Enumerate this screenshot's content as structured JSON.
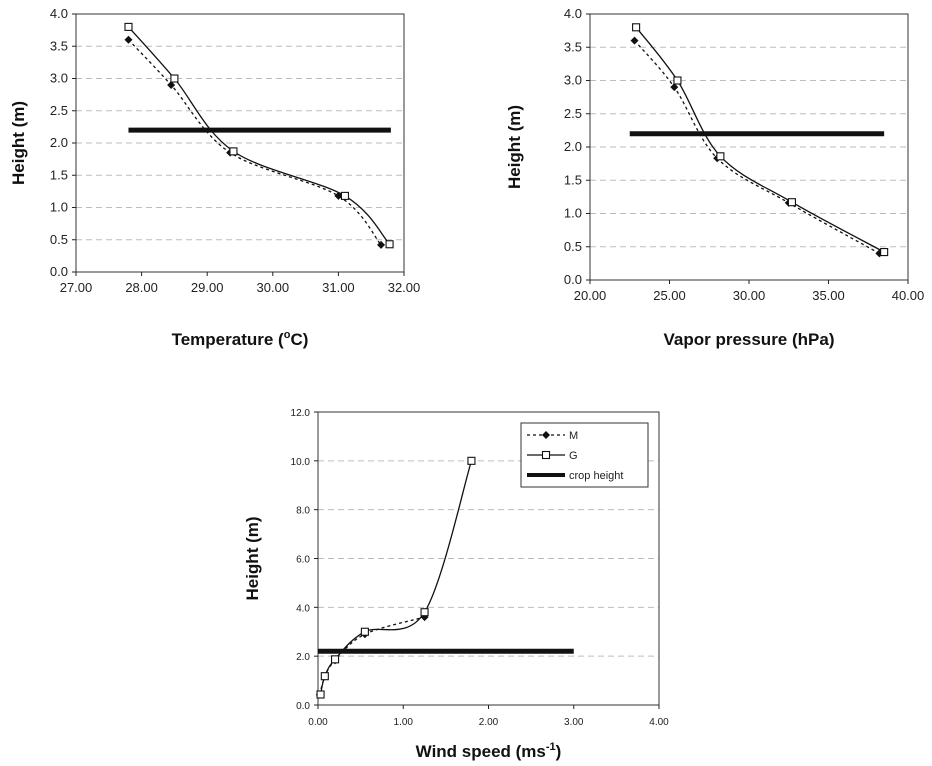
{
  "chart_data": [
    {
      "type": "line",
      "xlabel": "Temperature (",
      "xlabel_sup": "o",
      "xlabel_tail": "C)",
      "ylabel": "Height (m)",
      "xlim": [
        27,
        32
      ],
      "ylim": [
        0,
        4
      ],
      "xticks": [
        "27.00",
        "28.00",
        "29.00",
        "30.00",
        "31.00",
        "32.00"
      ],
      "yticks": [
        "0.0",
        "0.5",
        "1.0",
        "1.5",
        "2.0",
        "2.5",
        "3.0",
        "3.5",
        "4.0"
      ],
      "grid": true,
      "series": [
        {
          "name": "M",
          "marker": "diamond",
          "line": "dotted",
          "color": "#111111",
          "points": [
            [
              27.8,
              3.6
            ],
            [
              28.45,
              2.9
            ],
            [
              29.35,
              1.85
            ],
            [
              31.0,
              1.18
            ],
            [
              31.65,
              0.42
            ]
          ]
        },
        {
          "name": "G",
          "marker": "square",
          "line": "solid",
          "color": "#111111",
          "points": [
            [
              27.8,
              3.8
            ],
            [
              28.5,
              3.0
            ],
            [
              29.4,
              1.87
            ],
            [
              31.1,
              1.18
            ],
            [
              31.78,
              0.43
            ]
          ]
        }
      ],
      "reference_line": {
        "name": "crop height",
        "y": 2.2,
        "x_range": [
          27.8,
          31.8
        ]
      }
    },
    {
      "type": "line",
      "xlabel": "Vapor pressure (hPa)",
      "ylabel": "Height (m)",
      "xlim": [
        20,
        40
      ],
      "ylim": [
        0,
        4
      ],
      "xticks": [
        "20.00",
        "25.00",
        "30.00",
        "35.00",
        "40.00"
      ],
      "yticks": [
        "0.0",
        "0.5",
        "1.0",
        "1.5",
        "2.0",
        "2.5",
        "3.0",
        "3.5",
        "4.0"
      ],
      "grid": true,
      "series": [
        {
          "name": "M",
          "marker": "diamond",
          "line": "dotted",
          "color": "#111111",
          "points": [
            [
              22.8,
              3.6
            ],
            [
              25.3,
              2.9
            ],
            [
              28.0,
              1.83
            ],
            [
              32.5,
              1.16
            ],
            [
              38.2,
              0.4
            ]
          ]
        },
        {
          "name": "G",
          "marker": "square",
          "line": "solid",
          "color": "#111111",
          "points": [
            [
              22.9,
              3.8
            ],
            [
              25.5,
              3.0
            ],
            [
              28.2,
              1.86
            ],
            [
              32.7,
              1.17
            ],
            [
              38.5,
              0.42
            ]
          ]
        }
      ],
      "reference_line": {
        "name": "crop height",
        "y": 2.2,
        "x_range": [
          22.5,
          38.5
        ]
      }
    },
    {
      "type": "line",
      "xlabel": "Wind speed (ms",
      "xlabel_sup": "-1",
      "xlabel_tail": ")",
      "ylabel": "Height (m)",
      "xlim": [
        0,
        4
      ],
      "ylim": [
        0,
        12
      ],
      "xticks": [
        "0.00",
        "1.00",
        "2.00",
        "3.00",
        "4.00"
      ],
      "yticks": [
        "0.0",
        "2.0",
        "4.0",
        "6.0",
        "8.0",
        "10.0",
        "12.0"
      ],
      "grid": true,
      "legend": {
        "position": "top-right",
        "entries": [
          "M",
          "G",
          "crop height"
        ]
      },
      "series": [
        {
          "name": "M",
          "marker": "diamond",
          "line": "dotted",
          "color": "#111111",
          "points": [
            [
              0.02,
              0.42
            ],
            [
              0.08,
              1.16
            ],
            [
              0.2,
              1.83
            ],
            [
              0.55,
              2.9
            ],
            [
              1.25,
              3.6
            ]
          ]
        },
        {
          "name": "G",
          "marker": "square",
          "line": "solid",
          "color": "#111111",
          "points": [
            [
              0.03,
              0.43
            ],
            [
              0.08,
              1.18
            ],
            [
              0.2,
              1.87
            ],
            [
              0.55,
              3.0
            ],
            [
              1.25,
              3.8
            ],
            [
              1.8,
              10.0
            ]
          ]
        }
      ],
      "reference_line": {
        "name": "crop height",
        "y": 2.2,
        "x_range": [
          0.0,
          3.0
        ]
      }
    }
  ]
}
